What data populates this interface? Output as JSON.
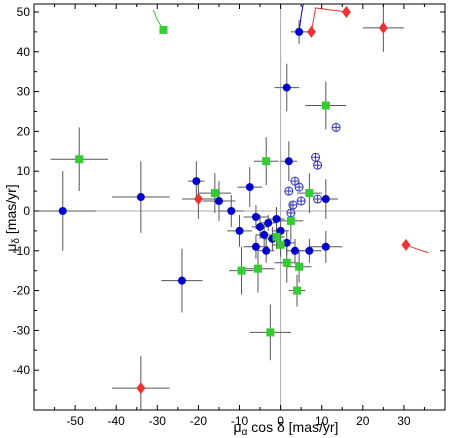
{
  "chart_data": {
    "type": "scatter",
    "title": "",
    "xlabel": "μα cos δ [mas/yr]",
    "ylabel": "μδ [mas/yr]",
    "xlabel_parts": [
      "μ",
      "α",
      " cos δ  [mas/yr]"
    ],
    "ylabel_parts": [
      "μ",
      "δ",
      " [mas/yr]"
    ],
    "xlim": [
      -60,
      40
    ],
    "ylim": [
      -50,
      52
    ],
    "xticks": [
      -50,
      -40,
      -30,
      -20,
      -10,
      0,
      10,
      20,
      30
    ],
    "yticks": [
      -40,
      -30,
      -20,
      -10,
      0,
      10,
      20,
      30,
      40,
      50
    ],
    "reference_lines": {
      "x": 0,
      "y": 0
    },
    "grid": false,
    "colors": {
      "blue": "#0000cc",
      "green": "#33cc33",
      "red": "#ee3333",
      "open_blue": "#3333bb",
      "error_bar": "#555555",
      "ref_line": "#aaaaaa"
    },
    "series": [
      {
        "marker": "circle",
        "color": "#0000cc",
        "points": [
          {
            "x": -53,
            "y": 0,
            "xerr": 8,
            "yerr": 10
          },
          {
            "x": -34,
            "y": 3.5,
            "xerr": 7,
            "yerr": 9
          },
          {
            "x": -24,
            "y": -17.5,
            "xerr": 5,
            "yerr": 8
          },
          {
            "x": -20.5,
            "y": 7.5,
            "xerr": 2,
            "yerr": 5
          },
          {
            "x": -15,
            "y": 2.5,
            "xerr": 4,
            "yerr": 5
          },
          {
            "x": -12,
            "y": 0,
            "xerr": 3,
            "yerr": 4
          },
          {
            "x": -7.5,
            "y": 6,
            "xerr": 3,
            "yerr": 5
          },
          {
            "x": -10,
            "y": -5,
            "xerr": 3,
            "yerr": 4
          },
          {
            "x": -6,
            "y": -9,
            "xerr": 3,
            "yerr": 3
          },
          {
            "x": -5,
            "y": -4,
            "xerr": 2,
            "yerr": 3
          },
          {
            "x": -4,
            "y": -6,
            "xerr": 2,
            "yerr": 3
          },
          {
            "x": -3,
            "y": -3,
            "xerr": 2,
            "yerr": 2
          },
          {
            "x": -2,
            "y": -7,
            "xerr": 2,
            "yerr": 3
          },
          {
            "x": -1,
            "y": -2,
            "xerr": 2,
            "yerr": 3
          },
          {
            "x": 0,
            "y": -5,
            "xerr": 2,
            "yerr": 3
          },
          {
            "x": -6,
            "y": -1.5,
            "xerr": 3,
            "yerr": 3
          },
          {
            "x": -3.5,
            "y": -10,
            "xerr": 2,
            "yerr": 3
          },
          {
            "x": 1.5,
            "y": -8,
            "xerr": 2,
            "yerr": 3
          },
          {
            "x": 2,
            "y": 12.5,
            "xerr": 2,
            "yerr": 5
          },
          {
            "x": 1.5,
            "y": 31,
            "xerr": 3,
            "yerr": 6
          },
          {
            "x": 4.5,
            "y": 45,
            "xerr": 2,
            "yerr": 3
          },
          {
            "x": 3.5,
            "y": -10,
            "xerr": 2,
            "yerr": 3
          },
          {
            "x": 7,
            "y": -10,
            "xerr": 3,
            "yerr": 3
          },
          {
            "x": 11,
            "y": 3,
            "xerr": 3,
            "yerr": 5
          },
          {
            "x": 11,
            "y": -9,
            "xerr": 4,
            "yerr": 4
          }
        ]
      },
      {
        "marker": "open-circle-cross",
        "color": "#3333bb",
        "points": [
          {
            "x": 13.5,
            "y": 21
          },
          {
            "x": 8.5,
            "y": 13.5
          },
          {
            "x": 9,
            "y": 11.5
          },
          {
            "x": 3.5,
            "y": 7.5
          },
          {
            "x": 4.5,
            "y": 6
          },
          {
            "x": 2,
            "y": 5
          },
          {
            "x": 3,
            "y": 1.5
          },
          {
            "x": 5,
            "y": 2.5
          },
          {
            "x": 2.5,
            "y": -0.5
          },
          {
            "x": 9,
            "y": 3
          }
        ]
      },
      {
        "marker": "square",
        "color": "#33cc33",
        "points": [
          {
            "x": -49,
            "y": 13,
            "xerr": 7,
            "yerr": 8
          },
          {
            "x": -28.5,
            "y": 45.5,
            "xerr": 0,
            "yerr": 0
          },
          {
            "x": -16,
            "y": 4.5,
            "xerr": 4,
            "yerr": 5
          },
          {
            "x": -3.5,
            "y": 12.5,
            "xerr": 3,
            "yerr": 6
          },
          {
            "x": 11,
            "y": 26.5,
            "xerr": 5,
            "yerr": 6
          },
          {
            "x": 7,
            "y": 4.5,
            "xerr": 3,
            "yerr": 5
          },
          {
            "x": -9.5,
            "y": -15,
            "xerr": 3,
            "yerr": 6
          },
          {
            "x": -5.5,
            "y": -14.5,
            "xerr": 4,
            "yerr": 6
          },
          {
            "x": -2.5,
            "y": -30.5,
            "xerr": 5,
            "yerr": 7
          },
          {
            "x": 1.5,
            "y": -13,
            "xerr": 3,
            "yerr": 5
          },
          {
            "x": 4.5,
            "y": -14,
            "xerr": 3,
            "yerr": 4
          },
          {
            "x": 4,
            "y": -20,
            "xerr": 2,
            "yerr": 4
          },
          {
            "x": 2.5,
            "y": -2.5,
            "xerr": 3,
            "yerr": 5
          },
          {
            "x": -1,
            "y": -6.5,
            "xerr": 2,
            "yerr": 3
          },
          {
            "x": 0,
            "y": -8.5,
            "xerr": 2,
            "yerr": 3
          }
        ]
      },
      {
        "marker": "diamond",
        "color": "#ee3333",
        "points": [
          {
            "x": -34,
            "y": -44.5,
            "xerr": 7,
            "yerr": 8
          },
          {
            "x": -20,
            "y": 3,
            "xerr": 4,
            "yerr": 5
          },
          {
            "x": 7.5,
            "y": 45,
            "xerr": 0,
            "yerr": 0
          },
          {
            "x": 16,
            "y": 50,
            "xerr": 0,
            "yerr": 0
          },
          {
            "x": 25,
            "y": 46,
            "xerr": 5,
            "yerr": 6
          },
          {
            "x": 30.5,
            "y": -8.5,
            "xerr": 0,
            "yerr": 0
          }
        ]
      }
    ],
    "motion_tracks": [
      {
        "color": "#33cc33",
        "points": [
          {
            "x": -28.5,
            "y": 45.5
          },
          {
            "x": -30,
            "y": 48
          },
          {
            "x": -31,
            "y": 50.5
          }
        ]
      },
      {
        "color": "#0000cc",
        "points": [
          {
            "x": 4.5,
            "y": 45
          },
          {
            "x": 5,
            "y": 49
          },
          {
            "x": 5.5,
            "y": 52
          }
        ]
      },
      {
        "color": "#ee3333",
        "points": [
          {
            "x": 7.5,
            "y": 45
          },
          {
            "x": 8,
            "y": 48
          },
          {
            "x": 8.5,
            "y": 51
          },
          {
            "x": 16,
            "y": 50
          }
        ]
      },
      {
        "color": "#ee3333",
        "points": [
          {
            "x": 30.5,
            "y": -8.5
          },
          {
            "x": 33,
            "y": -9.5
          },
          {
            "x": 36,
            "y": -10.5
          }
        ]
      }
    ]
  }
}
